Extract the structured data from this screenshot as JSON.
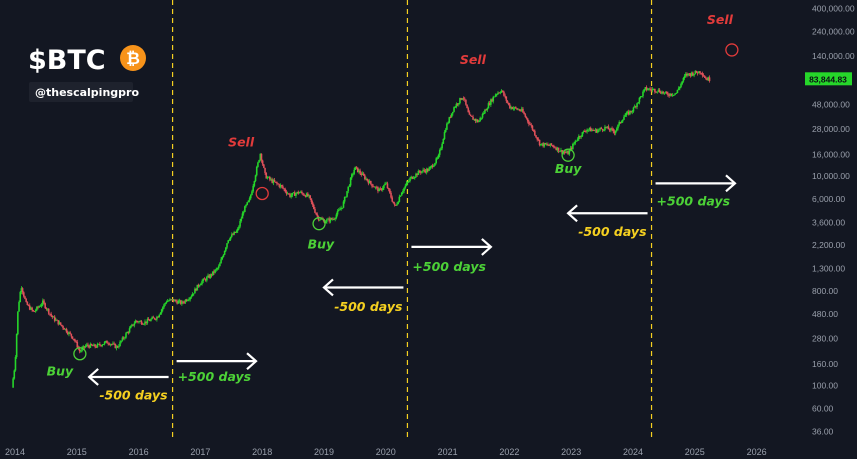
{
  "colors": {
    "background": "#131722",
    "bull": "#26d62a",
    "bear": "#e0515a",
    "halving_line": "#f5d020",
    "arrow": "#ffffff",
    "buy_text": "#4cd137",
    "sell_text": "#e23b3b",
    "days_plus": "#4cd137",
    "days_minus": "#f5d020",
    "price_tag_bg": "#26d62a"
  },
  "header": {
    "ticker": "$BTC",
    "handle": "@thescalpingpro",
    "coin_icon": "bitcoin-icon",
    "coin_symbol": "₿"
  },
  "chart_data": {
    "type": "candlestick",
    "scale": "log",
    "ylim": [
      30,
      480000
    ],
    "xlim": [
      2014.0,
      2026.3
    ],
    "y_ticks": [
      36,
      60,
      100,
      160,
      280,
      480,
      800,
      1300,
      2200,
      3600,
      6000,
      10000,
      16000,
      28000,
      48000,
      80000,
      140000,
      240000,
      400000
    ],
    "y_tick_labels": [
      "36.00",
      "60.00",
      "100.00",
      "160.00",
      "280.00",
      "480.00",
      "800.00",
      "1,300.00",
      "2,200.00",
      "3,600.00",
      "6,000.00",
      "10,000.00",
      "16,000.00",
      "28,000.00",
      "48,000.00",
      "",
      "140,000.00",
      "240,000.00",
      "400,000.00"
    ],
    "x_ticks": [
      2014,
      2015,
      2016,
      2017,
      2018,
      2019,
      2020,
      2021,
      2022,
      2023,
      2024,
      2025,
      2026
    ],
    "x_tick_labels": [
      "2014",
      "2015",
      "2016",
      "2017",
      "2018",
      "2019",
      "2020",
      "2021",
      "2022",
      "2023",
      "2024",
      "2025",
      "2026"
    ],
    "current_price": "83,844.83",
    "current_price_value": 83844.83,
    "price_path": [
      [
        2013.95,
        95
      ],
      [
        2014.0,
        160
      ],
      [
        2014.05,
        550
      ],
      [
        2014.1,
        900
      ],
      [
        2014.18,
        600
      ],
      [
        2014.3,
        500
      ],
      [
        2014.45,
        620
      ],
      [
        2014.6,
        450
      ],
      [
        2014.8,
        350
      ],
      [
        2014.95,
        280
      ],
      [
        2015.05,
        210
      ],
      [
        2015.15,
        240
      ],
      [
        2015.3,
        235
      ],
      [
        2015.5,
        260
      ],
      [
        2015.65,
        230
      ],
      [
        2015.8,
        310
      ],
      [
        2015.95,
        410
      ],
      [
        2016.1,
        400
      ],
      [
        2016.3,
        450
      ],
      [
        2016.45,
        640
      ],
      [
        2016.55,
        650
      ],
      [
        2016.7,
        610
      ],
      [
        2016.85,
        720
      ],
      [
        2017.0,
        960
      ],
      [
        2017.15,
        1100
      ],
      [
        2017.3,
        1350
      ],
      [
        2017.45,
        2500
      ],
      [
        2017.6,
        3000
      ],
      [
        2017.7,
        4700
      ],
      [
        2017.8,
        6000
      ],
      [
        2017.9,
        11000
      ],
      [
        2017.97,
        16500
      ],
      [
        2018.05,
        10000
      ],
      [
        2018.15,
        9000
      ],
      [
        2018.3,
        8000
      ],
      [
        2018.45,
        6500
      ],
      [
        2018.6,
        7000
      ],
      [
        2018.75,
        6400
      ],
      [
        2018.9,
        4000
      ],
      [
        2019.0,
        3700
      ],
      [
        2019.15,
        3900
      ],
      [
        2019.3,
        5200
      ],
      [
        2019.45,
        10000
      ],
      [
        2019.5,
        12000
      ],
      [
        2019.6,
        10500
      ],
      [
        2019.75,
        8500
      ],
      [
        2019.9,
        7200
      ],
      [
        2020.0,
        8500
      ],
      [
        2020.15,
        5000
      ],
      [
        2020.25,
        7000
      ],
      [
        2020.4,
        9500
      ],
      [
        2020.55,
        11000
      ],
      [
        2020.7,
        11500
      ],
      [
        2020.85,
        15000
      ],
      [
        2020.97,
        29000
      ],
      [
        2021.1,
        45000
      ],
      [
        2021.25,
        58000
      ],
      [
        2021.35,
        37000
      ],
      [
        2021.5,
        33000
      ],
      [
        2021.65,
        47000
      ],
      [
        2021.78,
        61000
      ],
      [
        2021.87,
        66000
      ],
      [
        2022.0,
        46000
      ],
      [
        2022.2,
        42000
      ],
      [
        2022.35,
        30000
      ],
      [
        2022.5,
        20000
      ],
      [
        2022.7,
        19500
      ],
      [
        2022.85,
        17000
      ],
      [
        2022.95,
        16500
      ],
      [
        2023.1,
        23000
      ],
      [
        2023.25,
        28000
      ],
      [
        2023.4,
        27000
      ],
      [
        2023.55,
        29000
      ],
      [
        2023.7,
        26500
      ],
      [
        2023.85,
        37000
      ],
      [
        2024.0,
        43000
      ],
      [
        2024.2,
        68000
      ],
      [
        2024.4,
        66000
      ],
      [
        2024.55,
        60000
      ],
      [
        2024.7,
        62000
      ],
      [
        2024.85,
        92000
      ],
      [
        2024.98,
        96000
      ],
      [
        2025.1,
        100000
      ],
      [
        2025.18,
        85000
      ],
      [
        2025.25,
        83844.83
      ]
    ],
    "halving_lines": [
      2016.55,
      2020.35,
      2024.3
    ],
    "annotations": [
      {
        "text": "Sell",
        "type": "sell",
        "x": 2017.95,
        "y": 16000,
        "dx": -18,
        "dy": -8
      },
      {
        "text": "Sell",
        "type": "sell",
        "x": 2021.7,
        "y": 66000,
        "dx": -18,
        "dy": -26
      },
      {
        "text": "Sell",
        "type": "sell",
        "x": 2025.6,
        "y": 160000,
        "dx": -12,
        "dy": -26
      },
      {
        "text": "Buy",
        "type": "buy",
        "x": 2015.05,
        "y": 210,
        "dx": -20,
        "dy": 24
      },
      {
        "text": "Buy",
        "type": "buy",
        "x": 2018.95,
        "y": 3600,
        "dx": 0,
        "dy": 26
      },
      {
        "text": "Buy",
        "type": "buy",
        "x": 2022.95,
        "y": 16500,
        "dx": 0,
        "dy": 20
      }
    ],
    "markers": [
      {
        "x": 2015.05,
        "y": 200,
        "kind": "buy"
      },
      {
        "x": 2018.92,
        "y": 3500,
        "kind": "buy"
      },
      {
        "x": 2022.95,
        "y": 15800,
        "kind": "buy"
      },
      {
        "x": 2018.0,
        "y": 6800,
        "kind": "sell"
      },
      {
        "x": 2025.6,
        "y": 160000,
        "kind": "sell"
      }
    ],
    "day_labels": [
      {
        "text": "-500 days",
        "from": 2016.55,
        "to": 2015.2,
        "y": 120,
        "direction": "left",
        "label_y": 80
      },
      {
        "text": "+500 days",
        "from": 2016.55,
        "to": 2017.9,
        "y": 170,
        "direction": "right",
        "label_y": 120
      },
      {
        "text": "-500 days",
        "from": 2020.35,
        "to": 2019.0,
        "y": 860,
        "direction": "left",
        "label_y": 560
      },
      {
        "text": "+500 days",
        "from": 2020.35,
        "to": 2021.7,
        "y": 2100,
        "direction": "right",
        "label_y": 1350
      },
      {
        "text": "-500 days",
        "from": 2024.3,
        "to": 2022.95,
        "y": 4400,
        "direction": "left",
        "label_y": 2900
      },
      {
        "text": "+500 days",
        "from": 2024.3,
        "to": 2025.65,
        "y": 8500,
        "direction": "right",
        "label_y": 5700
      }
    ]
  }
}
